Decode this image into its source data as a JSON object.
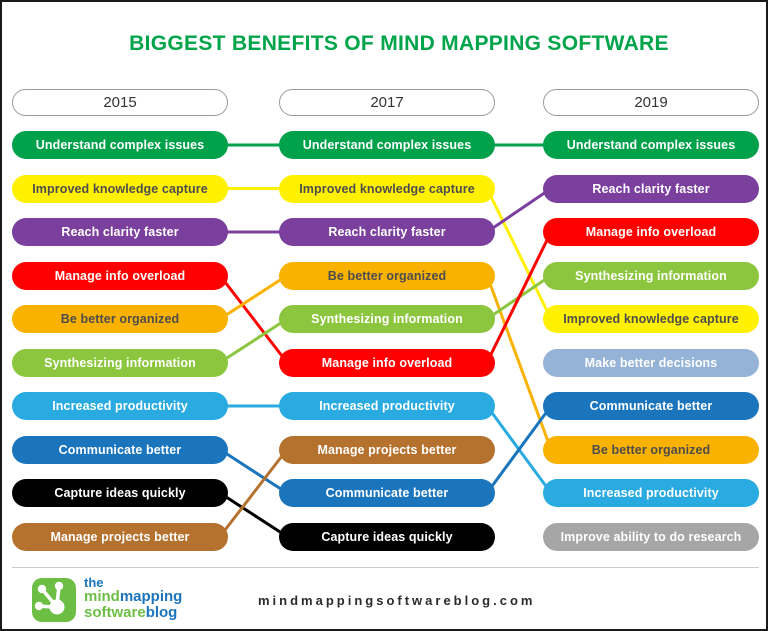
{
  "title": "BIGGEST BENEFITS OF MIND MAPPING SOFTWARE",
  "title_color": "#00A44A",
  "years": [
    "2015",
    "2017",
    "2019"
  ],
  "benefits": {
    "understand": {
      "label": "Understand complex issues",
      "color": "#00A14B",
      "text_color": "#FFFFFF"
    },
    "knowledge": {
      "label": "Improved knowledge capture",
      "color": "#FFF100",
      "text_color": "#4D4D4D"
    },
    "clarity": {
      "label": "Reach clarity faster",
      "color": "#7B3F9E",
      "text_color": "#FFFFFF"
    },
    "overload": {
      "label": "Manage info overload",
      "color": "#FF0000",
      "text_color": "#FFFFFF"
    },
    "organized": {
      "label": "Be better organized",
      "color": "#F9B200",
      "text_color": "#4D4D4D"
    },
    "synthesizing": {
      "label": "Synthesizing information",
      "color": "#8CC63F",
      "text_color": "#FFFFFF"
    },
    "productivity": {
      "label": "Increased productivity",
      "color": "#29ABE2",
      "text_color": "#FFFFFF"
    },
    "communicate": {
      "label": "Communicate better",
      "color": "#1B75BC",
      "text_color": "#FFFFFF"
    },
    "capture": {
      "label": "Capture ideas quickly",
      "color": "#000000",
      "text_color": "#FFFFFF"
    },
    "projects": {
      "label": "Manage projects better",
      "color": "#B5722F",
      "text_color": "#FFFFFF"
    },
    "decisions": {
      "label": "Make better decisions",
      "color": "#95B3D7",
      "text_color": "#FFFFFF"
    },
    "research": {
      "label": "Improve ability to do research",
      "color": "#A6A6A6",
      "text_color": "#FFFFFF"
    }
  },
  "columns": [
    {
      "year": "2015",
      "items": [
        "understand",
        "knowledge",
        "clarity",
        "overload",
        "organized",
        "synthesizing",
        "productivity",
        "communicate",
        "capture",
        "projects"
      ]
    },
    {
      "year": "2017",
      "items": [
        "understand",
        "knowledge",
        "clarity",
        "organized",
        "synthesizing",
        "overload",
        "productivity",
        "projects",
        "communicate",
        "capture"
      ]
    },
    {
      "year": "2019",
      "items": [
        "understand",
        "clarity",
        "overload",
        "synthesizing",
        "knowledge",
        "decisions",
        "communicate",
        "organized",
        "productivity",
        "research"
      ]
    }
  ],
  "links": [
    {
      "gap": 0,
      "from": 0,
      "to": 0,
      "benefit": "understand"
    },
    {
      "gap": 0,
      "from": 1,
      "to": 1,
      "benefit": "knowledge"
    },
    {
      "gap": 0,
      "from": 2,
      "to": 2,
      "benefit": "clarity"
    },
    {
      "gap": 0,
      "from": 3,
      "to": 5,
      "benefit": "overload"
    },
    {
      "gap": 0,
      "from": 4,
      "to": 3,
      "benefit": "organized"
    },
    {
      "gap": 0,
      "from": 5,
      "to": 4,
      "benefit": "synthesizing"
    },
    {
      "gap": 0,
      "from": 6,
      "to": 6,
      "benefit": "productivity"
    },
    {
      "gap": 0,
      "from": 7,
      "to": 8,
      "benefit": "communicate"
    },
    {
      "gap": 0,
      "from": 8,
      "to": 9,
      "benefit": "capture"
    },
    {
      "gap": 0,
      "from": 9,
      "to": 7,
      "benefit": "projects"
    },
    {
      "gap": 1,
      "from": 0,
      "to": 0,
      "benefit": "understand"
    },
    {
      "gap": 1,
      "from": 1,
      "to": 4,
      "benefit": "knowledge"
    },
    {
      "gap": 1,
      "from": 2,
      "to": 1,
      "benefit": "clarity"
    },
    {
      "gap": 1,
      "from": 3,
      "to": 7,
      "benefit": "organized"
    },
    {
      "gap": 1,
      "from": 4,
      "to": 3,
      "benefit": "synthesizing"
    },
    {
      "gap": 1,
      "from": 5,
      "to": 2,
      "benefit": "overload"
    },
    {
      "gap": 1,
      "from": 6,
      "to": 8,
      "benefit": "productivity"
    },
    {
      "gap": 1,
      "from": 8,
      "to": 6,
      "benefit": "communicate"
    }
  ],
  "footer": {
    "logo": {
      "line1": "the",
      "line2_green": "mind",
      "line2_blue": "mapping",
      "line3_green": "software",
      "line3_blue": "blog",
      "green": "#6CBE45",
      "blue": "#1C75BC"
    },
    "url": "mindmappingsoftwareblog.com"
  }
}
